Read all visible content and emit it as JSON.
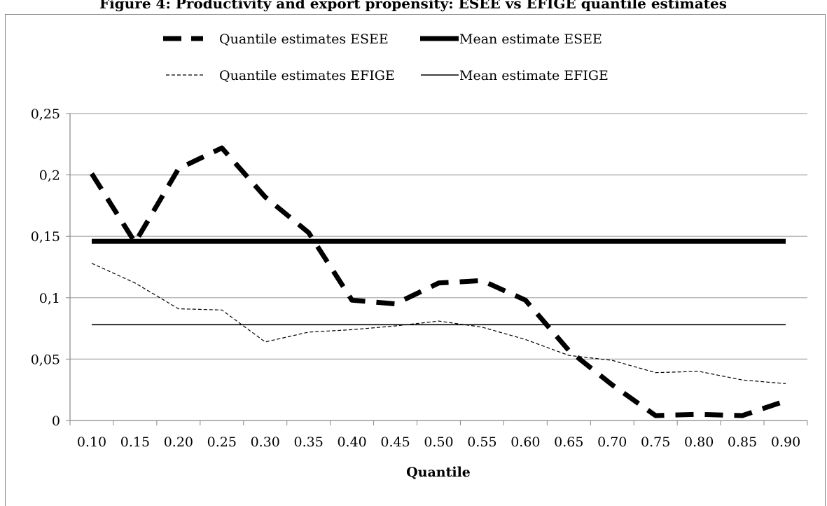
{
  "chart_data": {
    "type": "line",
    "title": "Figure 4: Productivity and export propensity: ESEE vs EFIGE quantile estimates",
    "xlabel": "Quantile",
    "ylabel": "",
    "categories": [
      "0.10",
      "0.15",
      "0.20",
      "0.25",
      "0.30",
      "0.35",
      "0.40",
      "0.45",
      "0.50",
      "0.55",
      "0.60",
      "0.65",
      "0.70",
      "0.75",
      "0.80",
      "0.85",
      "0.90"
    ],
    "ylim": [
      0,
      0.25
    ],
    "yticks": [
      0,
      0.05,
      0.1,
      0.15,
      0.2,
      0.25
    ],
    "ytick_labels": [
      "0",
      "0,05",
      "0,1",
      "0,15",
      "0,2",
      "0,25"
    ],
    "grid": "horizontal",
    "legend_position": "top",
    "series": [
      {
        "name": "Quantile estimates ESEE",
        "style": "dashed-thick",
        "values": [
          0.201,
          0.145,
          0.205,
          0.222,
          0.182,
          0.153,
          0.098,
          0.095,
          0.112,
          0.114,
          0.098,
          0.057,
          0.029,
          0.004,
          0.005,
          0.004,
          0.016
        ]
      },
      {
        "name": "Mean estimate ESEE",
        "style": "solid-thick",
        "values": [
          0.146,
          0.146,
          0.146,
          0.146,
          0.146,
          0.146,
          0.146,
          0.146,
          0.146,
          0.146,
          0.146,
          0.146,
          0.146,
          0.146,
          0.146,
          0.146,
          0.146
        ]
      },
      {
        "name": "Quantile estimates EFIGE",
        "style": "dashed-thin",
        "values": [
          0.128,
          0.112,
          0.091,
          0.09,
          0.064,
          0.072,
          0.074,
          0.077,
          0.081,
          0.076,
          0.066,
          0.053,
          0.049,
          0.039,
          0.04,
          0.033,
          0.03
        ]
      },
      {
        "name": "Mean estimate EFIGE",
        "style": "solid-thin",
        "values": [
          0.078,
          0.078,
          0.078,
          0.078,
          0.078,
          0.078,
          0.078,
          0.078,
          0.078,
          0.078,
          0.078,
          0.078,
          0.078,
          0.078,
          0.078,
          0.078,
          0.078
        ]
      }
    ],
    "colors": {
      "line": "#000000",
      "grid": "#a6a6a6",
      "axis": "#868686"
    }
  }
}
